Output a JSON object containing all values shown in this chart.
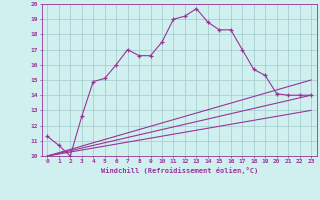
{
  "xlabel": "Windchill (Refroidissement éolien,°C)",
  "bg_color": "#d0f0f0",
  "grid_color": "#a8d0d0",
  "line_color": "#993399",
  "xlim": [
    -0.5,
    23.5
  ],
  "ylim": [
    10,
    20
  ],
  "xticks": [
    0,
    1,
    2,
    3,
    4,
    5,
    6,
    7,
    8,
    9,
    10,
    11,
    12,
    13,
    14,
    15,
    16,
    17,
    18,
    19,
    20,
    21,
    22,
    23
  ],
  "yticks": [
    10,
    11,
    12,
    13,
    14,
    15,
    16,
    17,
    18,
    19,
    20
  ],
  "series1_x": [
    0,
    1,
    2,
    3,
    4,
    5,
    6,
    7,
    8,
    9,
    10,
    11,
    12,
    13,
    14,
    15,
    16,
    17,
    18,
    19,
    20,
    21,
    22,
    23
  ],
  "series1_y": [
    11.3,
    10.7,
    10.0,
    12.6,
    14.9,
    15.1,
    16.0,
    17.0,
    16.6,
    16.6,
    17.5,
    19.0,
    19.2,
    19.7,
    18.8,
    18.3,
    18.3,
    17.0,
    15.7,
    15.3,
    14.1,
    14.0,
    14.0,
    14.0
  ],
  "series2_x": [
    0,
    23
  ],
  "series2_y": [
    10.0,
    14.0
  ],
  "series3_x": [
    0,
    23
  ],
  "series3_y": [
    10.0,
    13.0
  ],
  "series4_x": [
    0,
    23
  ],
  "series4_y": [
    10.0,
    15.0
  ]
}
